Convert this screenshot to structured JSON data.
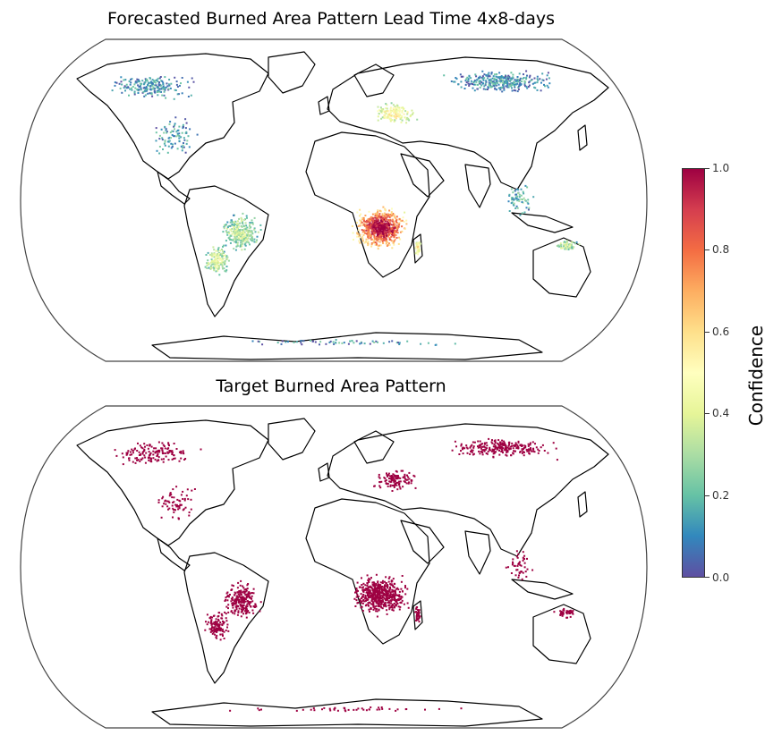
{
  "panels": [
    {
      "title": "Forecasted Burned Area Pattern Lead Time 4x8-days",
      "mode": "forecast"
    },
    {
      "title": "Target Burned Area Pattern",
      "mode": "target"
    }
  ],
  "colorbar": {
    "label": "Confidence",
    "colormap": "Spectral_r",
    "ticks": [
      "0.0",
      "0.2",
      "0.4",
      "0.6",
      "0.8",
      "1.0"
    ],
    "range": [
      0.0,
      1.0
    ],
    "target_color": "#9e0142"
  },
  "map": {
    "projection": "Robinson",
    "fire_regions": [
      {
        "name": "southern-africa",
        "forecast_confidence": 0.85
      },
      {
        "name": "madagascar",
        "forecast_confidence": 0.5
      },
      {
        "name": "brazil",
        "forecast_confidence": 0.3
      },
      {
        "name": "bolivia-paraguay",
        "forecast_confidence": 0.35
      },
      {
        "name": "ukraine-russia",
        "forecast_confidence": 0.45
      },
      {
        "name": "siberia",
        "forecast_confidence": 0.12
      },
      {
        "name": "canada-alaska",
        "forecast_confidence": 0.12
      },
      {
        "name": "usa",
        "forecast_confidence": 0.15
      },
      {
        "name": "southeast-asia",
        "forecast_confidence": 0.18
      },
      {
        "name": "northern-australia",
        "forecast_confidence": 0.3
      },
      {
        "name": "antarctic-coast",
        "forecast_confidence": 0.12
      }
    ]
  }
}
